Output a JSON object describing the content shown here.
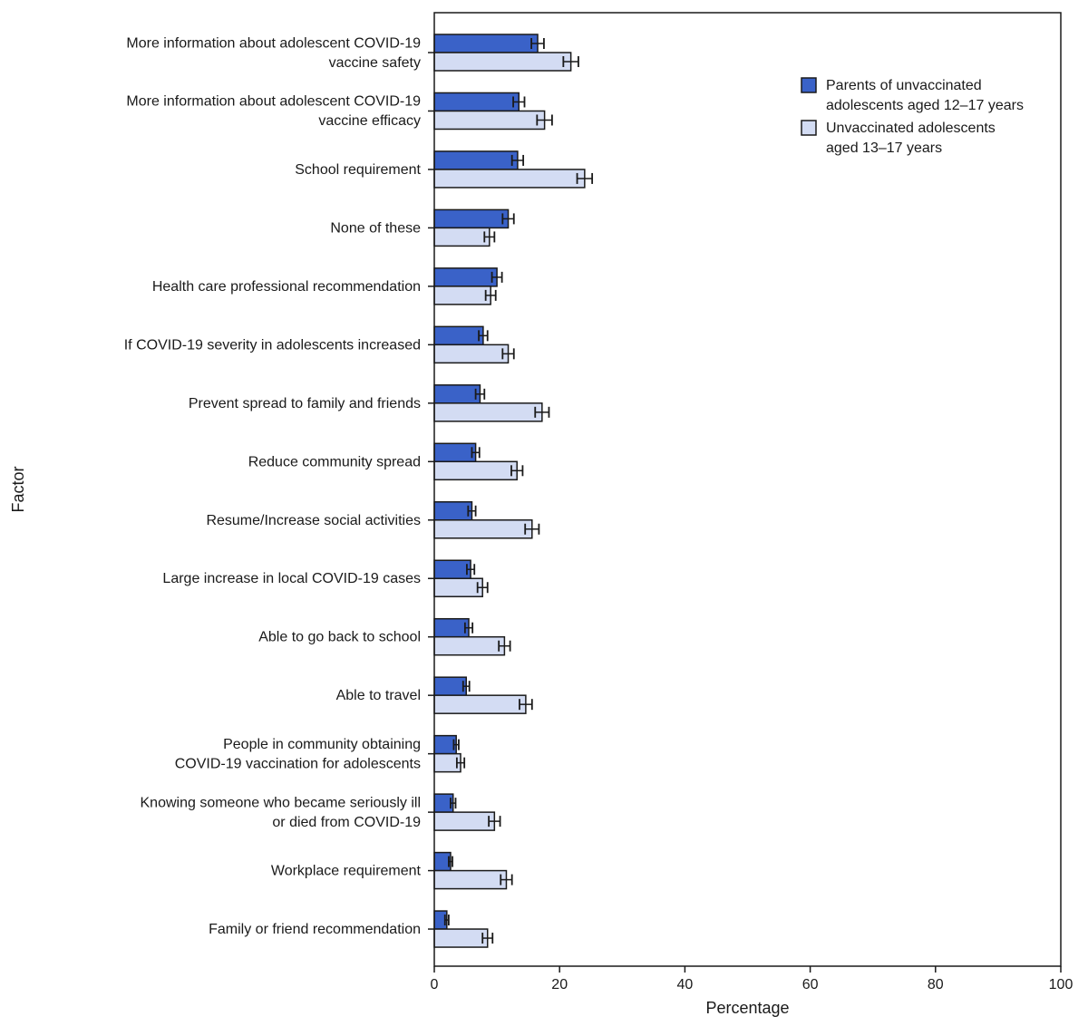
{
  "chart_data": {
    "type": "bar",
    "orientation": "horizontal",
    "title": "",
    "xlabel": "Percentage",
    "ylabel": "Factor",
    "xlim": [
      0,
      100
    ],
    "xticks": [
      0,
      20,
      40,
      60,
      80,
      100
    ],
    "grid": false,
    "legend_position": "top-right",
    "categories": [
      [
        "More information about adolescent COVID-19",
        "vaccine safety"
      ],
      [
        "More information about adolescent COVID-19",
        "vaccine efficacy"
      ],
      [
        "School requirement"
      ],
      [
        "None of these"
      ],
      [
        "Health care professional recommendation"
      ],
      [
        "If COVID-19 severity in adolescents increased"
      ],
      [
        "Prevent spread to family and friends"
      ],
      [
        "Reduce community spread"
      ],
      [
        "Resume/Increase social activities"
      ],
      [
        "Large increase in local COVID-19 cases"
      ],
      [
        "Able to go back to school"
      ],
      [
        "Able to travel"
      ],
      [
        "People in community obtaining",
        "COVID-19 vaccination for adolescents"
      ],
      [
        "Knowing someone who became seriously ill",
        "or died from COVID-19"
      ],
      [
        "Workplace requirement"
      ],
      [
        "Family or friend recommendation"
      ]
    ],
    "series": [
      {
        "name": [
          "Parents of unvaccinated",
          "adolescents aged 12–17 years"
        ],
        "color": "#3a62c8",
        "values": [
          16.5,
          13.5,
          13.3,
          11.8,
          10.0,
          7.8,
          7.3,
          6.6,
          6.0,
          5.8,
          5.5,
          5.1,
          3.5,
          3.0,
          2.6,
          2.0
        ],
        "ci_lower": [
          15.5,
          12.6,
          12.4,
          10.9,
          9.2,
          7.1,
          6.6,
          6.0,
          5.4,
          5.2,
          4.9,
          4.6,
          3.1,
          2.6,
          2.3,
          1.7
        ],
        "ci_upper": [
          17.5,
          14.4,
          14.2,
          12.7,
          10.8,
          8.5,
          8.0,
          7.2,
          6.6,
          6.4,
          6.1,
          5.6,
          3.9,
          3.4,
          2.9,
          2.3
        ]
      },
      {
        "name": [
          "Unvaccinated adolescents",
          "aged 13–17 years"
        ],
        "color": "#d3dcf3",
        "values": [
          21.8,
          17.6,
          24.0,
          8.8,
          9.0,
          11.8,
          17.2,
          13.2,
          15.6,
          7.7,
          11.2,
          14.6,
          4.2,
          9.6,
          11.5,
          8.5
        ],
        "ci_lower": [
          20.6,
          16.4,
          22.8,
          8.0,
          8.2,
          10.9,
          16.1,
          12.3,
          14.5,
          6.9,
          10.3,
          13.6,
          3.6,
          8.7,
          10.6,
          7.7
        ],
        "ci_upper": [
          23.0,
          18.8,
          25.2,
          9.6,
          9.8,
          12.7,
          18.3,
          14.1,
          16.7,
          8.5,
          12.1,
          15.6,
          4.8,
          10.5,
          12.4,
          9.3
        ]
      }
    ]
  }
}
